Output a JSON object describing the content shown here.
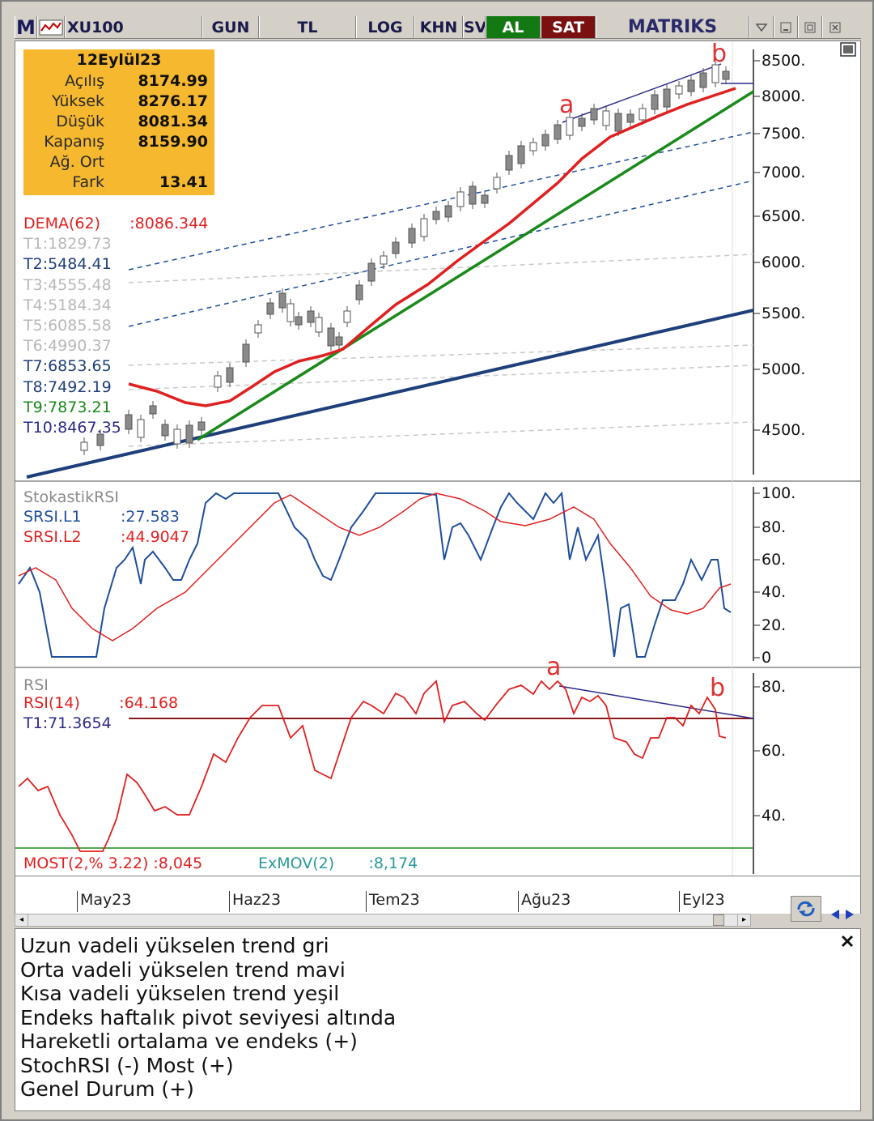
{
  "toolbar": {
    "logo": "M",
    "symbol": "XU100",
    "buttons": [
      "GUN",
      "TL",
      "LOG",
      "KHN",
      "SV"
    ],
    "buy": "AL",
    "sell": "SAT",
    "brand": "MATRIKS"
  },
  "info": {
    "date": "12Eylül23",
    "rows": [
      {
        "label": "Açılış",
        "value": "8174.99"
      },
      {
        "label": "Yüksek",
        "value": "8276.17"
      },
      {
        "label": "Düşük",
        "value": "8081.34"
      },
      {
        "label": "Kapanış",
        "value": "8159.90"
      },
      {
        "label": "Ağ. Ort",
        "value": ""
      },
      {
        "label": "Fark",
        "value": "13.41"
      }
    ]
  },
  "price_legend": [
    {
      "text": "DEMA(62)      :8086.344",
      "color": "#e02020"
    },
    {
      "text": "T1:1829.73",
      "color": "#b8b8b8"
    },
    {
      "text": "T2:5484.41",
      "color": "#1f3f7a"
    },
    {
      "text": "T3:4555.48",
      "color": "#b8b8b8"
    },
    {
      "text": "T4:5184.34",
      "color": "#b8b8b8"
    },
    {
      "text": "T5:6085.58",
      "color": "#b8b8b8"
    },
    {
      "text": "T6:4990.37",
      "color": "#b8b8b8"
    },
    {
      "text": "T7:6853.65",
      "color": "#1f3f7a"
    },
    {
      "text": "T8:7492.19",
      "color": "#1f3f7a"
    },
    {
      "text": "T9:7873.21",
      "color": "#1a8a1a"
    },
    {
      "text": "T10:8467.35",
      "color": "#2a2a8a"
    }
  ],
  "price_axis": [
    "8500.",
    "8000.",
    "7500.",
    "7000.",
    "6500.",
    "6000.",
    "5500.",
    "5000.",
    "4500."
  ],
  "srsi_legend": {
    "title": "StokastikRSI",
    "l1": "SRSI.L1        :27.583",
    "l2": "SRSI.L2        :44.9047"
  },
  "srsi_axis": [
    "100.",
    "80.",
    "60.",
    "40.",
    "20.",
    "0"
  ],
  "rsi_legend": {
    "title": "RSI",
    "rsi": "RSI(14)        :64.168",
    "t1": "T1:71.3654"
  },
  "rsi_axis": [
    "80.",
    "60.",
    "40."
  ],
  "most_legend": {
    "most": "MOST(2,% 3.22) :8,045",
    "exmov": "ExMOV(2)       :8,174"
  },
  "annotations": {
    "a": "a",
    "b": "b"
  },
  "dates": [
    "May23",
    "Haz23",
    "Tem23",
    "Ağu23",
    "Eyl23"
  ],
  "notes": [
    "Uzun vadeli yükselen trend gri",
    "Orta vadeli yükselen trend mavi",
    "Kısa vadeli yükselen trend yeşil",
    "Endeks haftalık pivot seviyesi altında",
    "Hareketli ortalama ve endeks (+)",
    "StochRSI (-) Most (+)",
    "Genel Durum (+)"
  ],
  "colors": {
    "al_bg": "#137a13",
    "sat_bg": "#7a1010",
    "info_bg": "#f5b82e",
    "dema": "#e02020",
    "short_trend": "#1a8a1a",
    "mid_trend": "#1f3f7a"
  }
}
